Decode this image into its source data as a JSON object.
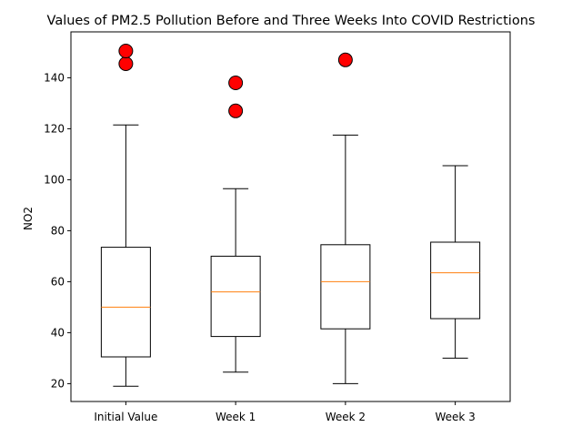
{
  "chart_data": {
    "type": "box",
    "title": "Values of PM2.5 Pollution Before and Three Weeks Into COVID Restrictions",
    "xlabel": "",
    "ylabel": "NO2",
    "ylim": [
      13,
      158
    ],
    "yticks": [
      20,
      40,
      60,
      80,
      100,
      120,
      140
    ],
    "grid": false,
    "categories": [
      "Initial Value",
      "Week 1",
      "Week 2",
      "Week 3"
    ],
    "boxes": [
      {
        "whisker_low": 19,
        "q1": 30.5,
        "median": 50,
        "q3": 73.5,
        "whisker_high": 121.5,
        "outliers": [
          145.5,
          150.5
        ]
      },
      {
        "whisker_low": 24.5,
        "q1": 38.5,
        "median": 56,
        "q3": 70,
        "whisker_high": 96.5,
        "outliers": [
          127,
          138
        ]
      },
      {
        "whisker_low": 20,
        "q1": 41.5,
        "median": 60,
        "q3": 74.5,
        "whisker_high": 117.5,
        "outliers": [
          147
        ]
      },
      {
        "whisker_low": 30,
        "q1": 45.5,
        "median": 63.5,
        "q3": 75.5,
        "whisker_high": 105.5,
        "outliers": []
      }
    ],
    "colors": {
      "box": "#000000",
      "median": "#ff7f0e",
      "outlier_fill": "#ff0000",
      "outlier_edge": "#000000"
    }
  }
}
